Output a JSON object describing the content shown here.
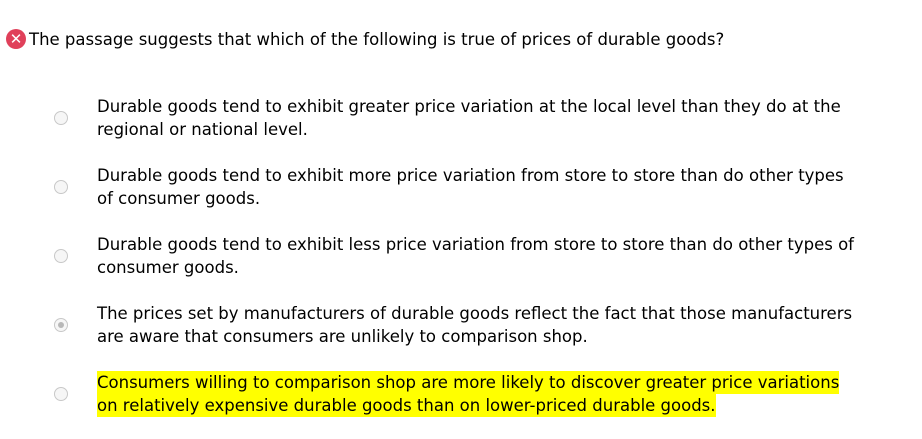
{
  "question": {
    "status_icon": "incorrect-x-icon",
    "text": "The passage suggests that which of the following is true of prices of durable goods?"
  },
  "highlight_color": "#ffff00",
  "options": [
    {
      "lines": [
        "Durable goods tend to exhibit greater price variation at the local level than they do at the",
        "regional or national level."
      ],
      "selected": false,
      "highlighted": false
    },
    {
      "lines": [
        "Durable goods tend to exhibit more price variation from store to store than do other types",
        "of consumer goods."
      ],
      "selected": false,
      "highlighted": false
    },
    {
      "lines": [
        "Durable goods tend to exhibit less price variation from store to store than do other types of",
        "consumer goods."
      ],
      "selected": false,
      "highlighted": false
    },
    {
      "lines": [
        "The prices set by manufacturers of durable goods reflect the fact that those manufacturers",
        "are aware that consumers are unlikely to comparison shop."
      ],
      "selected": true,
      "highlighted": false
    },
    {
      "lines": [
        "Consumers willing to comparison shop are more likely to discover greater price variations",
        "on relatively expensive durable goods than on lower-priced durable goods."
      ],
      "selected": false,
      "highlighted": true
    }
  ]
}
